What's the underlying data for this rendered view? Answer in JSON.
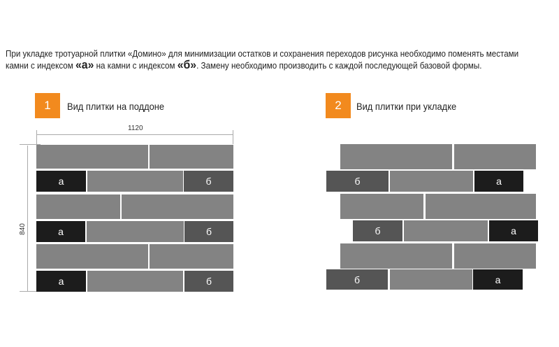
{
  "intro": {
    "line1": "При укладке тротуарной плитки «Домино» для минимизации остатков и сохранения переходов рисунка необходимо поменять местами",
    "line2_pre": "камни с индексом ",
    "index_a": "«а»",
    "line2_mid": " на камни с индексом ",
    "index_b": "«б»",
    "line2_post": ". Замену необходимо производить с каждой последующей базовой формы."
  },
  "section1": {
    "number": "1",
    "title": "Вид плитки на поддоне",
    "width_label": "1120",
    "height_label": "840"
  },
  "section2": {
    "number": "2",
    "title": "Вид плитки при укладке"
  },
  "labels": {
    "a": "а",
    "b": "б"
  },
  "colors": {
    "accent": "#f28a1e",
    "tile": "#838383",
    "tile_a": "#1c1c1c",
    "tile_b": "#555555"
  }
}
